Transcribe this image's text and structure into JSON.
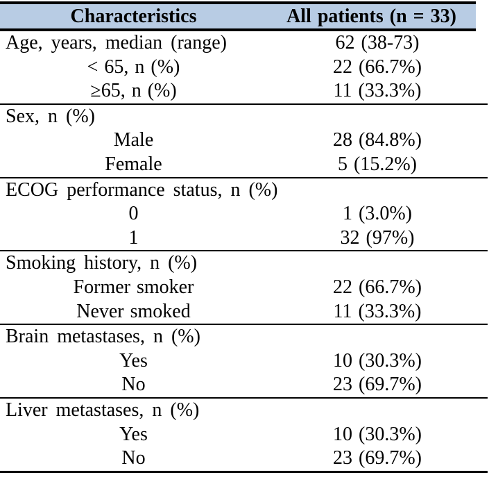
{
  "theme": {
    "header_bg": "#b8cce4",
    "border_color": "#000000",
    "text_color": "#000000",
    "page_bg": "#ffffff"
  },
  "header": {
    "characteristics": "Characteristics",
    "all_patients": "All patients (n = 33)"
  },
  "sections": [
    {
      "name": "age",
      "rows": [
        {
          "label": "Age, years, median (range)",
          "value": "62 (38-73)",
          "type": "category"
        },
        {
          "label": "< 65, n (%)",
          "value": "22 (66.7%)",
          "type": "sub"
        },
        {
          "label": "≥65, n (%)",
          "value": "11 (33.3%)",
          "type": "sub"
        }
      ]
    },
    {
      "name": "sex",
      "rows": [
        {
          "label": "Sex, n (%)",
          "value": "",
          "type": "category"
        },
        {
          "label": "Male",
          "value": "28 (84.8%)",
          "type": "sub"
        },
        {
          "label": "Female",
          "value": "5 (15.2%)",
          "type": "sub"
        }
      ]
    },
    {
      "name": "ecog-performance-status",
      "rows": [
        {
          "label": "ECOG performance status, n (%)",
          "value": "",
          "type": "category"
        },
        {
          "label": "0",
          "value": "1 (3.0%)",
          "type": "sub"
        },
        {
          "label": "1",
          "value": "32 (97%)",
          "type": "sub"
        }
      ]
    },
    {
      "name": "smoking-history",
      "rows": [
        {
          "label": "Smoking history, n (%)",
          "value": "",
          "type": "category"
        },
        {
          "label": "Former smoker",
          "value": "22 (66.7%)",
          "type": "sub"
        },
        {
          "label": "Never smoked",
          "value": "11 (33.3%)",
          "type": "sub"
        }
      ]
    },
    {
      "name": "brain-metastases",
      "rows": [
        {
          "label": "Brain metastases, n (%)",
          "value": "",
          "type": "category"
        },
        {
          "label": "Yes",
          "value": "10 (30.3%)",
          "type": "sub"
        },
        {
          "label": "No",
          "value": "23 (69.7%)",
          "type": "sub"
        }
      ]
    },
    {
      "name": "liver-metastases",
      "rows": [
        {
          "label": "Liver metastases, n (%)",
          "value": "",
          "type": "category"
        },
        {
          "label": "Yes",
          "value": "10 (30.3%)",
          "type": "sub"
        },
        {
          "label": "No",
          "value": "23 (69.7%)",
          "type": "sub"
        }
      ]
    }
  ]
}
